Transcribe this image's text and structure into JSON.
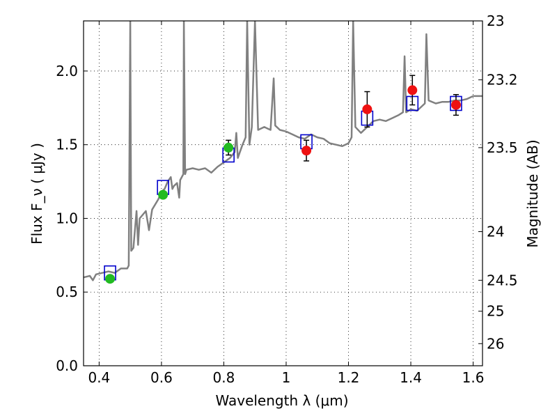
{
  "chart_data": {
    "type": "scatter",
    "xlabel": "Wavelength  λ (μm)",
    "ylabel": "Flux  F_ν  ( μJy )",
    "y2label": "Magnitude (AB)",
    "xlim": [
      0.35,
      1.63
    ],
    "ylim": [
      0.0,
      2.34
    ],
    "xticks": [
      0.4,
      0.6,
      0.8,
      1.0,
      1.2,
      1.4,
      1.6
    ],
    "xtick_labels": [
      "0.4",
      "0.6",
      "0.8",
      "1",
      "1.2",
      "1.4",
      "1.6"
    ],
    "yticks": [
      0.0,
      0.5,
      1.0,
      1.5,
      2.0
    ],
    "ytick_labels": [
      "0.0",
      "0.5",
      "1.0",
      "1.5",
      "2.0"
    ],
    "y2ticks": [
      {
        "flux": 2.34,
        "label": "23"
      },
      {
        "flux": 1.94,
        "label": "23.2"
      },
      {
        "flux": 1.48,
        "label": "23.5"
      },
      {
        "flux": 0.91,
        "label": "24"
      },
      {
        "flux": 0.58,
        "label": "24.5"
      },
      {
        "flux": 0.37,
        "label": "25"
      },
      {
        "flux": 0.15,
        "label": "26"
      }
    ],
    "grid": true,
    "colors": {
      "model": "#808080",
      "box": "#0000cc",
      "optical": "#22bb22",
      "nir": "#ee1111",
      "errorbar": "#000000"
    },
    "model_spectrum": [
      [
        0.35,
        0.6
      ],
      [
        0.37,
        0.61
      ],
      [
        0.38,
        0.58
      ],
      [
        0.39,
        0.62
      ],
      [
        0.41,
        0.63
      ],
      [
        0.43,
        0.64
      ],
      [
        0.45,
        0.63
      ],
      [
        0.47,
        0.66
      ],
      [
        0.49,
        0.66
      ],
      [
        0.495,
        0.68
      ],
      [
        0.5,
        2.34
      ],
      [
        0.503,
        0.78
      ],
      [
        0.51,
        0.8
      ],
      [
        0.52,
        1.05
      ],
      [
        0.525,
        0.82
      ],
      [
        0.53,
        1.0
      ],
      [
        0.55,
        1.05
      ],
      [
        0.56,
        0.92
      ],
      [
        0.57,
        1.06
      ],
      [
        0.59,
        1.13
      ],
      [
        0.6,
        1.18
      ],
      [
        0.61,
        1.2
      ],
      [
        0.62,
        1.25
      ],
      [
        0.63,
        1.28
      ],
      [
        0.635,
        1.2
      ],
      [
        0.64,
        1.22
      ],
      [
        0.65,
        1.24
      ],
      [
        0.657,
        1.14
      ],
      [
        0.66,
        1.26
      ],
      [
        0.67,
        1.3
      ],
      [
        0.672,
        2.34
      ],
      [
        0.676,
        1.3
      ],
      [
        0.68,
        1.33
      ],
      [
        0.7,
        1.34
      ],
      [
        0.72,
        1.33
      ],
      [
        0.74,
        1.34
      ],
      [
        0.76,
        1.31
      ],
      [
        0.78,
        1.35
      ],
      [
        0.8,
        1.38
      ],
      [
        0.82,
        1.41
      ],
      [
        0.835,
        1.45
      ],
      [
        0.84,
        1.58
      ],
      [
        0.845,
        1.41
      ],
      [
        0.86,
        1.5
      ],
      [
        0.87,
        1.55
      ],
      [
        0.875,
        2.34
      ],
      [
        0.882,
        1.5
      ],
      [
        0.89,
        1.62
      ],
      [
        0.9,
        2.34
      ],
      [
        0.91,
        1.6
      ],
      [
        0.93,
        1.62
      ],
      [
        0.95,
        1.6
      ],
      [
        0.96,
        1.95
      ],
      [
        0.965,
        1.63
      ],
      [
        0.98,
        1.6
      ],
      [
        1.0,
        1.59
      ],
      [
        1.02,
        1.57
      ],
      [
        1.04,
        1.55
      ],
      [
        1.06,
        1.54
      ],
      [
        1.08,
        1.57
      ],
      [
        1.1,
        1.55
      ],
      [
        1.12,
        1.54
      ],
      [
        1.14,
        1.51
      ],
      [
        1.16,
        1.5
      ],
      [
        1.18,
        1.49
      ],
      [
        1.2,
        1.51
      ],
      [
        1.21,
        1.55
      ],
      [
        1.215,
        2.34
      ],
      [
        1.222,
        1.62
      ],
      [
        1.24,
        1.58
      ],
      [
        1.26,
        1.62
      ],
      [
        1.28,
        1.66
      ],
      [
        1.3,
        1.67
      ],
      [
        1.32,
        1.66
      ],
      [
        1.34,
        1.68
      ],
      [
        1.36,
        1.7
      ],
      [
        1.375,
        1.72
      ],
      [
        1.38,
        2.1
      ],
      [
        1.385,
        1.72
      ],
      [
        1.4,
        1.74
      ],
      [
        1.42,
        1.73
      ],
      [
        1.445,
        1.78
      ],
      [
        1.45,
        2.25
      ],
      [
        1.457,
        1.8
      ],
      [
        1.48,
        1.78
      ],
      [
        1.5,
        1.79
      ],
      [
        1.52,
        1.79
      ],
      [
        1.54,
        1.8
      ],
      [
        1.56,
        1.8
      ],
      [
        1.58,
        1.81
      ],
      [
        1.6,
        1.83
      ],
      [
        1.63,
        1.83
      ]
    ],
    "model_photometry": [
      {
        "x": 0.435,
        "y": 0.63
      },
      {
        "x": 0.605,
        "y": 1.21
      },
      {
        "x": 0.815,
        "y": 1.43
      },
      {
        "x": 1.065,
        "y": 1.52
      },
      {
        "x": 1.26,
        "y": 1.68
      },
      {
        "x": 1.405,
        "y": 1.78
      },
      {
        "x": 1.545,
        "y": 1.78
      }
    ],
    "observed_optical": [
      {
        "x": 0.435,
        "y": 0.59,
        "err": 0.02
      },
      {
        "x": 0.605,
        "y": 1.16,
        "err": 0.02
      },
      {
        "x": 0.815,
        "y": 1.48,
        "err": 0.05
      }
    ],
    "observed_nir": [
      {
        "x": 1.065,
        "y": 1.46,
        "err": 0.07
      },
      {
        "x": 1.26,
        "y": 1.74,
        "err": 0.12
      },
      {
        "x": 1.405,
        "y": 1.87,
        "err": 0.1
      },
      {
        "x": 1.545,
        "y": 1.77,
        "err": 0.07
      }
    ]
  }
}
